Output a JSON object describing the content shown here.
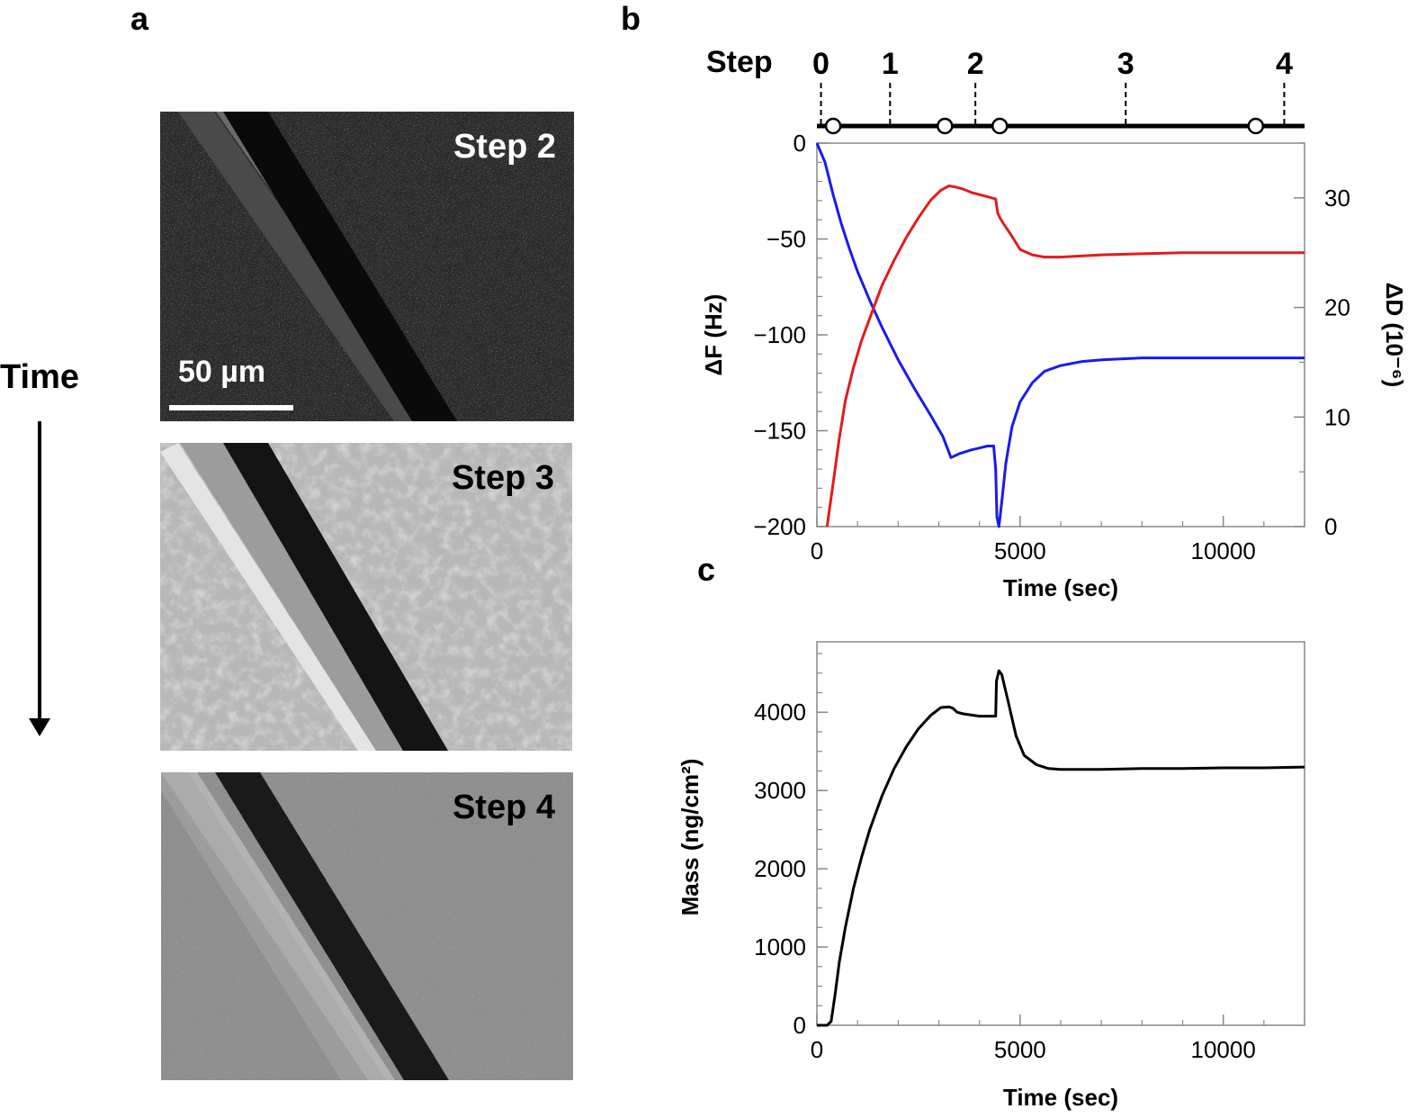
{
  "panel_labels": {
    "a": "a",
    "b": "b",
    "c": "c"
  },
  "panel_a": {
    "time_label": "Time",
    "scale_bar": "50 µm",
    "images": [
      {
        "label": "Step 2",
        "tone": "dark"
      },
      {
        "label": "Step 3",
        "tone": "light"
      },
      {
        "label": "Step 4",
        "tone": "gray"
      }
    ]
  },
  "chart_data": [
    {
      "id": "b",
      "type": "line",
      "xlabel": "Time (sec)",
      "ylabel": "ΔF (Hz)",
      "ylabel_right": "ΔD (10⁻⁶)",
      "xlim": [
        0,
        12000
      ],
      "xticks": [
        0,
        5000,
        10000
      ],
      "ylim": [
        -200,
        0
      ],
      "yticks": [
        0,
        -50,
        -100,
        -150,
        -200
      ],
      "ylim_right": [
        0,
        35
      ],
      "yticks_right": [
        0,
        10,
        20,
        30
      ],
      "step_axis": {
        "label": "Step",
        "steps": [
          {
            "label": "0",
            "x": 100
          },
          {
            "label": "1",
            "x": 1800
          },
          {
            "label": "2",
            "x": 3900
          },
          {
            "label": "3",
            "x": 7600
          },
          {
            "label": "4",
            "x": 11500
          }
        ],
        "markers": [
          400,
          3150,
          4500,
          10800
        ]
      },
      "series": [
        {
          "axis": "left",
          "color": "#1a1aee",
          "x": [
            0,
            200,
            400,
            600,
            800,
            1000,
            1300,
            1600,
            2000,
            2400,
            2800,
            3100,
            3300,
            3500,
            3800,
            4000,
            4200,
            4350,
            4400,
            4430,
            4480,
            4550,
            4650,
            4800,
            5000,
            5300,
            5600,
            6000,
            6500,
            7000,
            8000,
            9000,
            10000,
            11000,
            12000
          ],
          "values": [
            0,
            -10,
            -27,
            -42,
            -55,
            -67,
            -82,
            -96,
            -113,
            -128,
            -142,
            -153,
            -164,
            -162,
            -160,
            -159,
            -158,
            -158,
            -170,
            -195,
            -200,
            -187,
            -167,
            -148,
            -135,
            -125,
            -119,
            -116,
            -114,
            -113,
            -112,
            -112,
            -112,
            -112,
            -112
          ]
        },
        {
          "axis": "right",
          "color": "#e11c1c",
          "x": [
            250,
            400,
            550,
            700,
            900,
            1100,
            1300,
            1600,
            1900,
            2200,
            2500,
            2800,
            3050,
            3250,
            3400,
            3600,
            3800,
            4000,
            4200,
            4400,
            4450,
            4500,
            4600,
            4800,
            5000,
            5300,
            5600,
            6000,
            6500,
            7000,
            8000,
            9000,
            10000,
            11000,
            12000
          ],
          "values": [
            0,
            4,
            8,
            11.5,
            14.5,
            17,
            19,
            22,
            24.3,
            26.4,
            28.2,
            29.8,
            30.7,
            31.1,
            31,
            30.8,
            30.5,
            30.3,
            30.1,
            29.9,
            28.6,
            28.2,
            27.6,
            26.5,
            25.3,
            24.8,
            24.6,
            24.6,
            24.7,
            24.8,
            24.9,
            25,
            25,
            25,
            25
          ]
        }
      ]
    },
    {
      "id": "c",
      "type": "line",
      "xlabel": "Time (sec)",
      "ylabel": "Mass (ng/cm²)",
      "xlim": [
        0,
        12000
      ],
      "xticks": [
        0,
        5000,
        10000
      ],
      "ylim": [
        0,
        4900
      ],
      "yticks": [
        0,
        1000,
        2000,
        3000,
        4000
      ],
      "series": [
        {
          "color": "#000000",
          "x": [
            0,
            250,
            350,
            450,
            550,
            700,
            900,
            1100,
            1300,
            1600,
            1900,
            2200,
            2500,
            2800,
            3050,
            3250,
            3350,
            3450,
            3600,
            4000,
            4400,
            4420,
            4480,
            4550,
            4700,
            4900,
            5100,
            5400,
            5700,
            6000,
            6500,
            7000,
            8000,
            9000,
            10000,
            11000,
            12000
          ],
          "values": [
            0,
            0,
            50,
            400,
            800,
            1250,
            1750,
            2150,
            2500,
            2930,
            3280,
            3560,
            3790,
            3960,
            4060,
            4070,
            4050,
            4000,
            3980,
            3950,
            3950,
            4400,
            4530,
            4480,
            4150,
            3700,
            3450,
            3330,
            3280,
            3270,
            3270,
            3270,
            3280,
            3280,
            3290,
            3290,
            3300
          ]
        }
      ]
    }
  ]
}
